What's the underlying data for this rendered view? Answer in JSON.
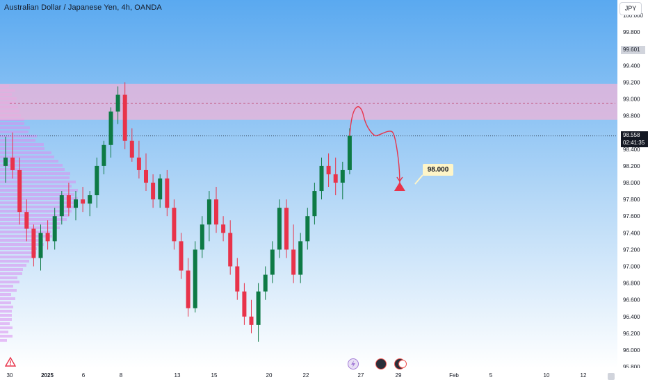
{
  "window": {
    "title": "Australian Dollar / Japanese Yen, 4h, OANDA"
  },
  "currency_button": "JPY",
  "price_axis": {
    "ticks": [
      "100.000",
      "99.800",
      "99.400",
      "99.200",
      "99.000",
      "98.800",
      "98.400",
      "98.200",
      "98.000",
      "97.800",
      "97.600",
      "97.400",
      "97.200",
      "97.000",
      "96.800",
      "96.600",
      "96.400",
      "96.200",
      "96.000",
      "95.800"
    ],
    "tick_values": [
      100.0,
      99.8,
      99.4,
      99.2,
      99.0,
      98.8,
      98.4,
      98.2,
      98.0,
      97.8,
      97.6,
      97.4,
      97.2,
      97.0,
      96.8,
      96.6,
      96.4,
      96.2,
      96.0,
      95.8
    ],
    "current_price_label": "98.558",
    "countdown_label": "02:41:35",
    "marker_price_label": "99.601"
  },
  "time_axis": {
    "labels": [
      "30",
      "2025",
      "6",
      "8",
      "13",
      "15",
      "20",
      "22",
      "27",
      "29",
      "Feb",
      "5",
      "10",
      "12"
    ],
    "bold_label": "2025"
  },
  "annotations": {
    "target_label": "98.000",
    "target_price": 98.0,
    "resistance_zone": [
      98.75,
      99.18
    ],
    "resistance_midline": 98.95
  },
  "colors": {
    "background_gradient_top": "#5aa9f0",
    "background_gradient_bottom": "#ffffff",
    "up_candle": "#0e7a45",
    "down_candle": "#e8334a",
    "zone_fill": "#f0b4d8",
    "volume_profile": "#d98ef0",
    "projection": "#e8334a",
    "axis_text": "#131722",
    "current_price_tag": "#131722"
  },
  "icons": {
    "alert": "warning-triangle-icon",
    "events": [
      "lightning-icon",
      "dividend-icon",
      "earnings-icon"
    ]
  },
  "chart_data": {
    "type": "candlestick",
    "title": "Australian Dollar / Japanese Yen, 4h, OANDA",
    "ylim": [
      95.8,
      100.1
    ],
    "last_price": 98.558,
    "projection_path": [
      98.56,
      98.9,
      98.56,
      98.6,
      97.95
    ],
    "ohlc": [
      [
        98.2,
        98.55,
        98.0,
        98.3
      ],
      [
        98.3,
        98.6,
        98.05,
        98.15
      ],
      [
        98.15,
        98.3,
        97.5,
        97.65
      ],
      [
        97.65,
        97.8,
        97.3,
        97.45
      ],
      [
        97.45,
        97.5,
        97.0,
        97.1
      ],
      [
        97.1,
        97.5,
        96.95,
        97.4
      ],
      [
        97.4,
        97.55,
        97.2,
        97.3
      ],
      [
        97.3,
        97.7,
        97.2,
        97.6
      ],
      [
        97.6,
        97.9,
        97.5,
        97.85
      ],
      [
        97.85,
        98.0,
        97.6,
        97.7
      ],
      [
        97.7,
        97.9,
        97.55,
        97.8
      ],
      [
        97.8,
        97.95,
        97.65,
        97.75
      ],
      [
        97.75,
        97.9,
        97.6,
        97.85
      ],
      [
        97.85,
        98.3,
        97.7,
        98.2
      ],
      [
        98.2,
        98.5,
        98.1,
        98.45
      ],
      [
        98.45,
        98.9,
        98.3,
        98.85
      ],
      [
        98.85,
        99.15,
        98.7,
        99.05
      ],
      [
        99.05,
        99.2,
        98.4,
        98.5
      ],
      [
        98.5,
        98.65,
        98.25,
        98.3
      ],
      [
        98.3,
        98.5,
        98.05,
        98.15
      ],
      [
        98.15,
        98.35,
        97.9,
        98.0
      ],
      [
        98.0,
        98.1,
        97.7,
        97.8
      ],
      [
        97.8,
        98.1,
        97.7,
        98.05
      ],
      [
        98.05,
        98.15,
        97.6,
        97.7
      ],
      [
        97.7,
        97.8,
        97.2,
        97.3
      ],
      [
        97.3,
        97.4,
        96.85,
        96.95
      ],
      [
        96.95,
        97.1,
        96.4,
        96.5
      ],
      [
        96.5,
        97.3,
        96.45,
        97.2
      ],
      [
        97.2,
        97.6,
        97.1,
        97.5
      ],
      [
        97.5,
        97.9,
        97.3,
        97.8
      ],
      [
        97.8,
        97.95,
        97.4,
        97.5
      ],
      [
        97.5,
        97.6,
        97.3,
        97.4
      ],
      [
        97.4,
        97.55,
        96.9,
        97.0
      ],
      [
        97.0,
        97.1,
        96.6,
        96.7
      ],
      [
        96.7,
        96.8,
        96.3,
        96.4
      ],
      [
        96.4,
        96.6,
        96.2,
        96.3
      ],
      [
        96.3,
        96.8,
        96.1,
        96.7
      ],
      [
        96.7,
        97.0,
        96.6,
        96.9
      ],
      [
        96.9,
        97.3,
        96.8,
        97.2
      ],
      [
        97.2,
        97.8,
        97.1,
        97.7
      ],
      [
        97.7,
        97.8,
        97.1,
        97.2
      ],
      [
        97.2,
        97.5,
        96.8,
        96.9
      ],
      [
        96.9,
        97.4,
        96.8,
        97.3
      ],
      [
        97.3,
        97.7,
        97.2,
        97.6
      ],
      [
        97.6,
        98.0,
        97.5,
        97.9
      ],
      [
        97.9,
        98.3,
        97.8,
        98.2
      ],
      [
        98.2,
        98.35,
        97.95,
        98.1
      ],
      [
        98.1,
        98.3,
        97.85,
        98.0
      ],
      [
        98.0,
        98.25,
        97.8,
        98.15
      ],
      [
        98.15,
        98.65,
        98.1,
        98.56
      ]
    ]
  }
}
